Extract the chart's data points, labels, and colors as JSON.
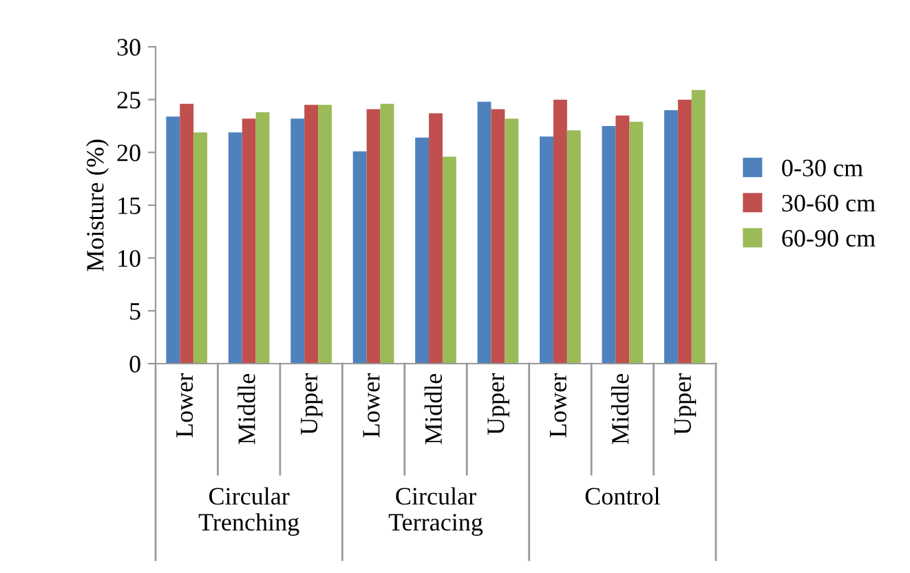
{
  "chart_data": {
    "type": "bar",
    "ylabel": "Moisture (%)",
    "categories": [
      "Lower",
      "Middle",
      "Upper",
      "Lower",
      "Middle",
      "Upper",
      "Lower",
      "Middle",
      "Upper"
    ],
    "annotations": [
      "Circular\nTrenching",
      "Circular\nTerracing",
      "Control"
    ],
    "series": [
      {
        "name": "0-30 cm",
        "color": "#4f81bd",
        "values": [
          23.4,
          21.9,
          23.2,
          20.1,
          21.4,
          24.8,
          21.5,
          22.5,
          24.0
        ]
      },
      {
        "name": "30-60 cm",
        "color": "#c0504d",
        "values": [
          24.6,
          23.2,
          24.5,
          24.1,
          23.7,
          24.1,
          25.0,
          23.5,
          25.0
        ]
      },
      {
        "name": "60-90 cm",
        "color": "#9bbb59",
        "values": [
          21.9,
          23.8,
          24.5,
          24.6,
          19.6,
          23.2,
          22.1,
          22.9,
          25.9
        ]
      }
    ],
    "ylim": [
      0,
      30
    ],
    "yticks": [
      0,
      5,
      10,
      15,
      20,
      25,
      30
    ],
    "grid": false,
    "legend": "right"
  }
}
